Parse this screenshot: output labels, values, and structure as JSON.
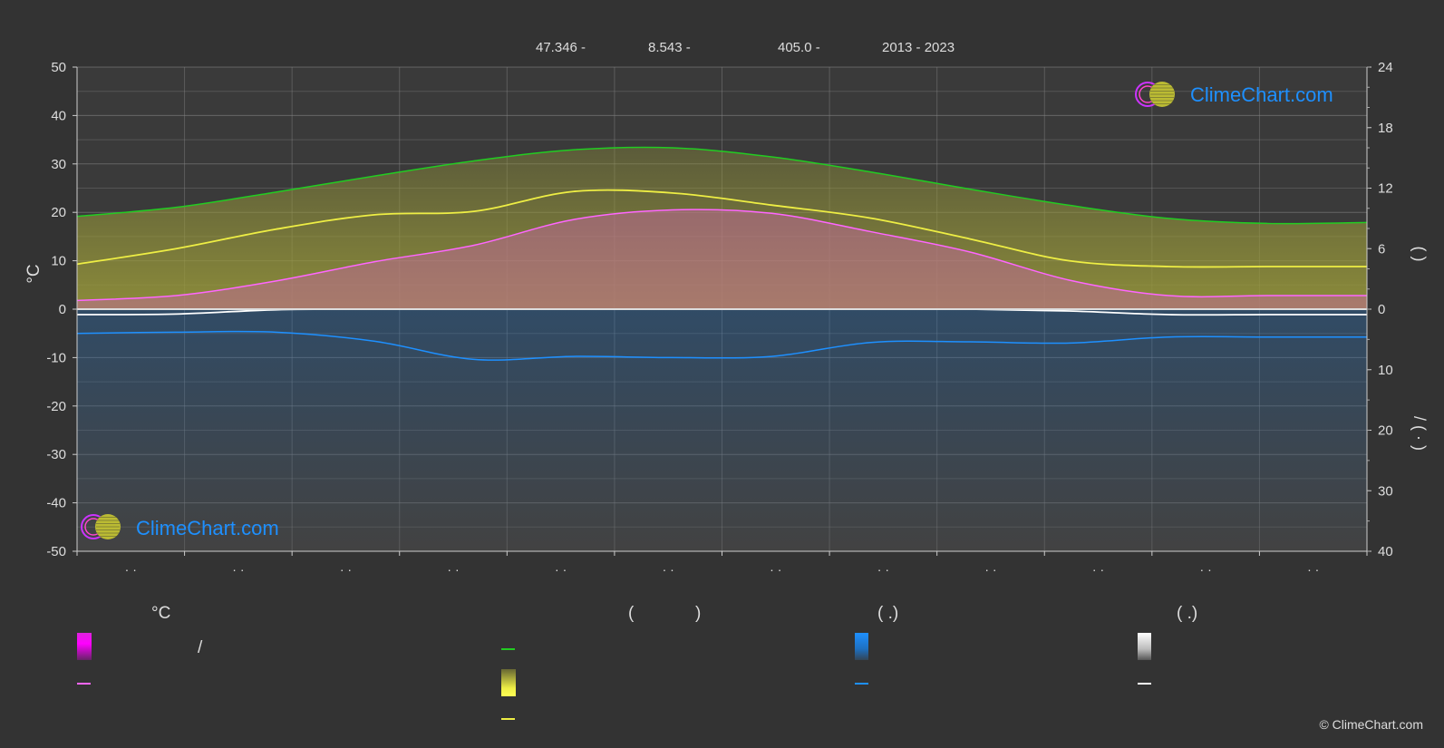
{
  "header": {
    "lat": "47.346 -",
    "lon": "8.543 -",
    "elev": "405.0 -",
    "years": "2013 - 2023"
  },
  "watermark": {
    "text": "ClimeChart.com"
  },
  "copyright": "© ClimeChart.com",
  "legend": {
    "temp_unit": "°C",
    "daylight_paren_left": "(",
    "daylight_paren_right": ")",
    "rain_paren": "(   .)",
    "snow_paren": "(   .)",
    "temp_slash": "/"
  },
  "colors": {
    "background": "#333333",
    "daylight": "#22cc22",
    "sunshine": "#eeee44",
    "max_temp": "#ff66ff",
    "rain": "#1e90ff",
    "snow": "#ffffff",
    "grid": "#888888"
  },
  "chart_data": {
    "type": "area",
    "x_tick_labels": [
      "· ·",
      "· ·",
      "· ·",
      "· ·",
      "· ·",
      "· ·",
      "· ·",
      "· ·",
      "· ·",
      "· ·",
      "· ·",
      "· ·"
    ],
    "left_axis": {
      "unit": "°C",
      "ticks": [
        50,
        40,
        30,
        20,
        10,
        0,
        -10,
        -20,
        -30,
        -40,
        -50
      ],
      "range": [
        -50,
        50
      ]
    },
    "right_axis_top": {
      "ticks": [
        24,
        18,
        12,
        6,
        0
      ],
      "range": [
        0,
        24
      ],
      "label_parens": "(   )"
    },
    "right_axis_bottom": {
      "ticks": [
        0,
        10,
        20,
        30,
        40
      ],
      "range": [
        0,
        40
      ],
      "label": "/  (  ·  )"
    },
    "series": [
      {
        "key": "daylight",
        "axis": "right_top",
        "values": [
          9.2,
          10.1,
          11.6,
          13.2,
          14.7,
          15.8,
          16.0,
          15.1,
          13.6,
          11.9,
          10.3,
          9.0,
          8.5,
          8.6
        ]
      },
      {
        "key": "sunshine",
        "axis": "left",
        "values": [
          9.3,
          12.5,
          16.5,
          19.5,
          20.2,
          24.3,
          24.0,
          21.5,
          18.8,
          14.5,
          10.0,
          8.8,
          8.8,
          8.8
        ]
      },
      {
        "key": "max_temp",
        "axis": "left",
        "values": [
          1.8,
          2.8,
          5.8,
          9.8,
          13.2,
          18.5,
          20.5,
          19.8,
          16.0,
          11.8,
          6.0,
          2.8,
          2.8,
          2.8
        ]
      },
      {
        "key": "rain",
        "axis": "right_bottom",
        "values": [
          4.0,
          3.8,
          3.8,
          5.3,
          8.3,
          7.8,
          8.0,
          7.8,
          5.5,
          5.4,
          5.6,
          4.6,
          4.6,
          4.6
        ]
      },
      {
        "key": "snow",
        "axis": "right_bottom",
        "values": [
          0.9,
          0.8,
          0.1,
          0.0,
          0.0,
          0.0,
          0.0,
          0.0,
          0.0,
          0.0,
          0.3,
          0.9,
          0.9,
          0.9
        ]
      }
    ]
  }
}
